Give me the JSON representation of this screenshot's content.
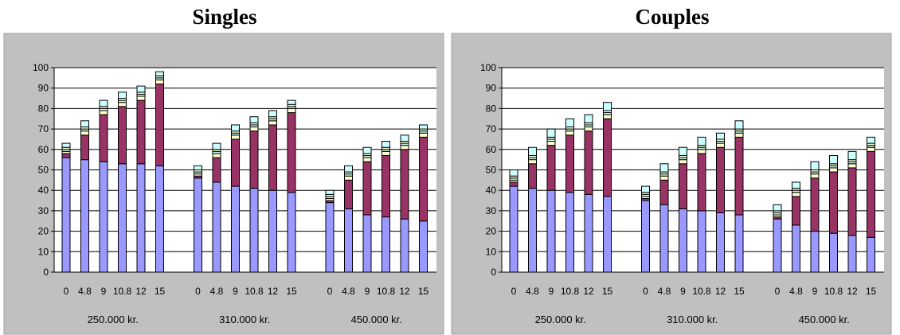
{
  "chart_data": [
    {
      "type": "bar",
      "stacked": true,
      "title": "Singles",
      "ylim": [
        0,
        100
      ],
      "yticks": [
        0,
        10,
        20,
        30,
        40,
        50,
        60,
        70,
        80,
        90,
        100
      ],
      "grid": true,
      "legend": "none",
      "background": "#c0c0c0",
      "groups": [
        {
          "label": "250.000 kr.",
          "categories": [
            "0",
            "4.8",
            "9",
            "10.8",
            "12",
            "15"
          ],
          "series": [
            {
              "values": [
                56,
                55,
                54,
                53,
                53,
                52
              ]
            },
            {
              "values": [
                2,
                12,
                23,
                28,
                31,
                40
              ]
            },
            {
              "values": [
                1,
                2,
                2,
                2,
                2,
                2
              ]
            },
            {
              "values": [
                1,
                1,
                1,
                1,
                1,
                1
              ]
            },
            {
              "values": [
                1,
                1,
                1,
                1,
                1,
                1
              ]
            },
            {
              "values": [
                2,
                3,
                3,
                3,
                3,
                2
              ]
            }
          ]
        },
        {
          "label": "310.000 kr.",
          "categories": [
            "0",
            "4.8",
            "9",
            "10.8",
            "12",
            "15"
          ],
          "series": [
            {
              "values": [
                46,
                44,
                42,
                41,
                40,
                39
              ]
            },
            {
              "values": [
                1,
                12,
                23,
                28,
                32,
                39
              ]
            },
            {
              "values": [
                1,
                2,
                2,
                2,
                2,
                2
              ]
            },
            {
              "values": [
                1,
                1,
                1,
                1,
                1,
                1
              ]
            },
            {
              "values": [
                1,
                1,
                1,
                1,
                1,
                1
              ]
            },
            {
              "values": [
                2,
                3,
                3,
                3,
                3,
                2
              ]
            }
          ]
        },
        {
          "label": "450.000 kr.",
          "categories": [
            "0",
            "4.8",
            "9",
            "10.8",
            "12",
            "15"
          ],
          "series": [
            {
              "values": [
                34,
                31,
                28,
                27,
                26,
                25
              ]
            },
            {
              "values": [
                1,
                14,
                26,
                30,
                34,
                41
              ]
            },
            {
              "values": [
                1,
                2,
                2,
                2,
                2,
                2
              ]
            },
            {
              "values": [
                1,
                1,
                1,
                1,
                1,
                1
              ]
            },
            {
              "values": [
                1,
                1,
                1,
                1,
                1,
                1
              ]
            },
            {
              "values": [
                2,
                3,
                3,
                3,
                3,
                2
              ]
            }
          ]
        }
      ]
    },
    {
      "type": "bar",
      "stacked": true,
      "title": "Couples",
      "ylim": [
        0,
        100
      ],
      "yticks": [
        0,
        10,
        20,
        30,
        40,
        50,
        60,
        70,
        80,
        90,
        100
      ],
      "grid": true,
      "legend": "none",
      "background": "#c0c0c0",
      "groups": [
        {
          "label": "250.000 kr.",
          "categories": [
            "0",
            "4.8",
            "9",
            "10.8",
            "12",
            "15"
          ],
          "series": [
            {
              "values": [
                42,
                41,
                40,
                39,
                38,
                37
              ]
            },
            {
              "values": [
                2,
                12,
                22,
                28,
                31,
                38
              ]
            },
            {
              "values": [
                1,
                2,
                2,
                2,
                2,
                2
              ]
            },
            {
              "values": [
                1,
                1,
                1,
                1,
                1,
                1
              ]
            },
            {
              "values": [
                1,
                1,
                1,
                1,
                1,
                1
              ]
            },
            {
              "values": [
                3,
                4,
                4,
                4,
                4,
                4
              ]
            }
          ]
        },
        {
          "label": "310.000 kr.",
          "categories": [
            "0",
            "4.8",
            "9",
            "10.8",
            "12",
            "15"
          ],
          "series": [
            {
              "values": [
                35,
                33,
                31,
                30,
                29,
                28
              ]
            },
            {
              "values": [
                1,
                12,
                22,
                28,
                32,
                38
              ]
            },
            {
              "values": [
                1,
                2,
                2,
                2,
                2,
                2
              ]
            },
            {
              "values": [
                1,
                1,
                1,
                1,
                1,
                1
              ]
            },
            {
              "values": [
                1,
                1,
                1,
                1,
                1,
                1
              ]
            },
            {
              "values": [
                3,
                4,
                4,
                4,
                3,
                4
              ]
            }
          ]
        },
        {
          "label": "450.000 kr.",
          "categories": [
            "0",
            "4.8",
            "9",
            "10.8",
            "12",
            "15"
          ],
          "series": [
            {
              "values": [
                26,
                23,
                20,
                19,
                18,
                17
              ]
            },
            {
              "values": [
                1,
                14,
                26,
                30,
                33,
                42
              ]
            },
            {
              "values": [
                1,
                2,
                2,
                2,
                2,
                2
              ]
            },
            {
              "values": [
                1,
                1,
                1,
                1,
                1,
                1
              ]
            },
            {
              "values": [
                1,
                1,
                1,
                1,
                1,
                1
              ]
            },
            {
              "values": [
                3,
                3,
                4,
                4,
                4,
                3
              ]
            }
          ]
        }
      ]
    }
  ],
  "colors": {
    "series": [
      "#9999ff",
      "#993366",
      "#ffffcc",
      "#ccffff",
      "#ffffcc",
      "#ccffff"
    ],
    "frame_background": "#c0c0c0",
    "plot_background": "#ffffff",
    "gridline": "#000000"
  }
}
